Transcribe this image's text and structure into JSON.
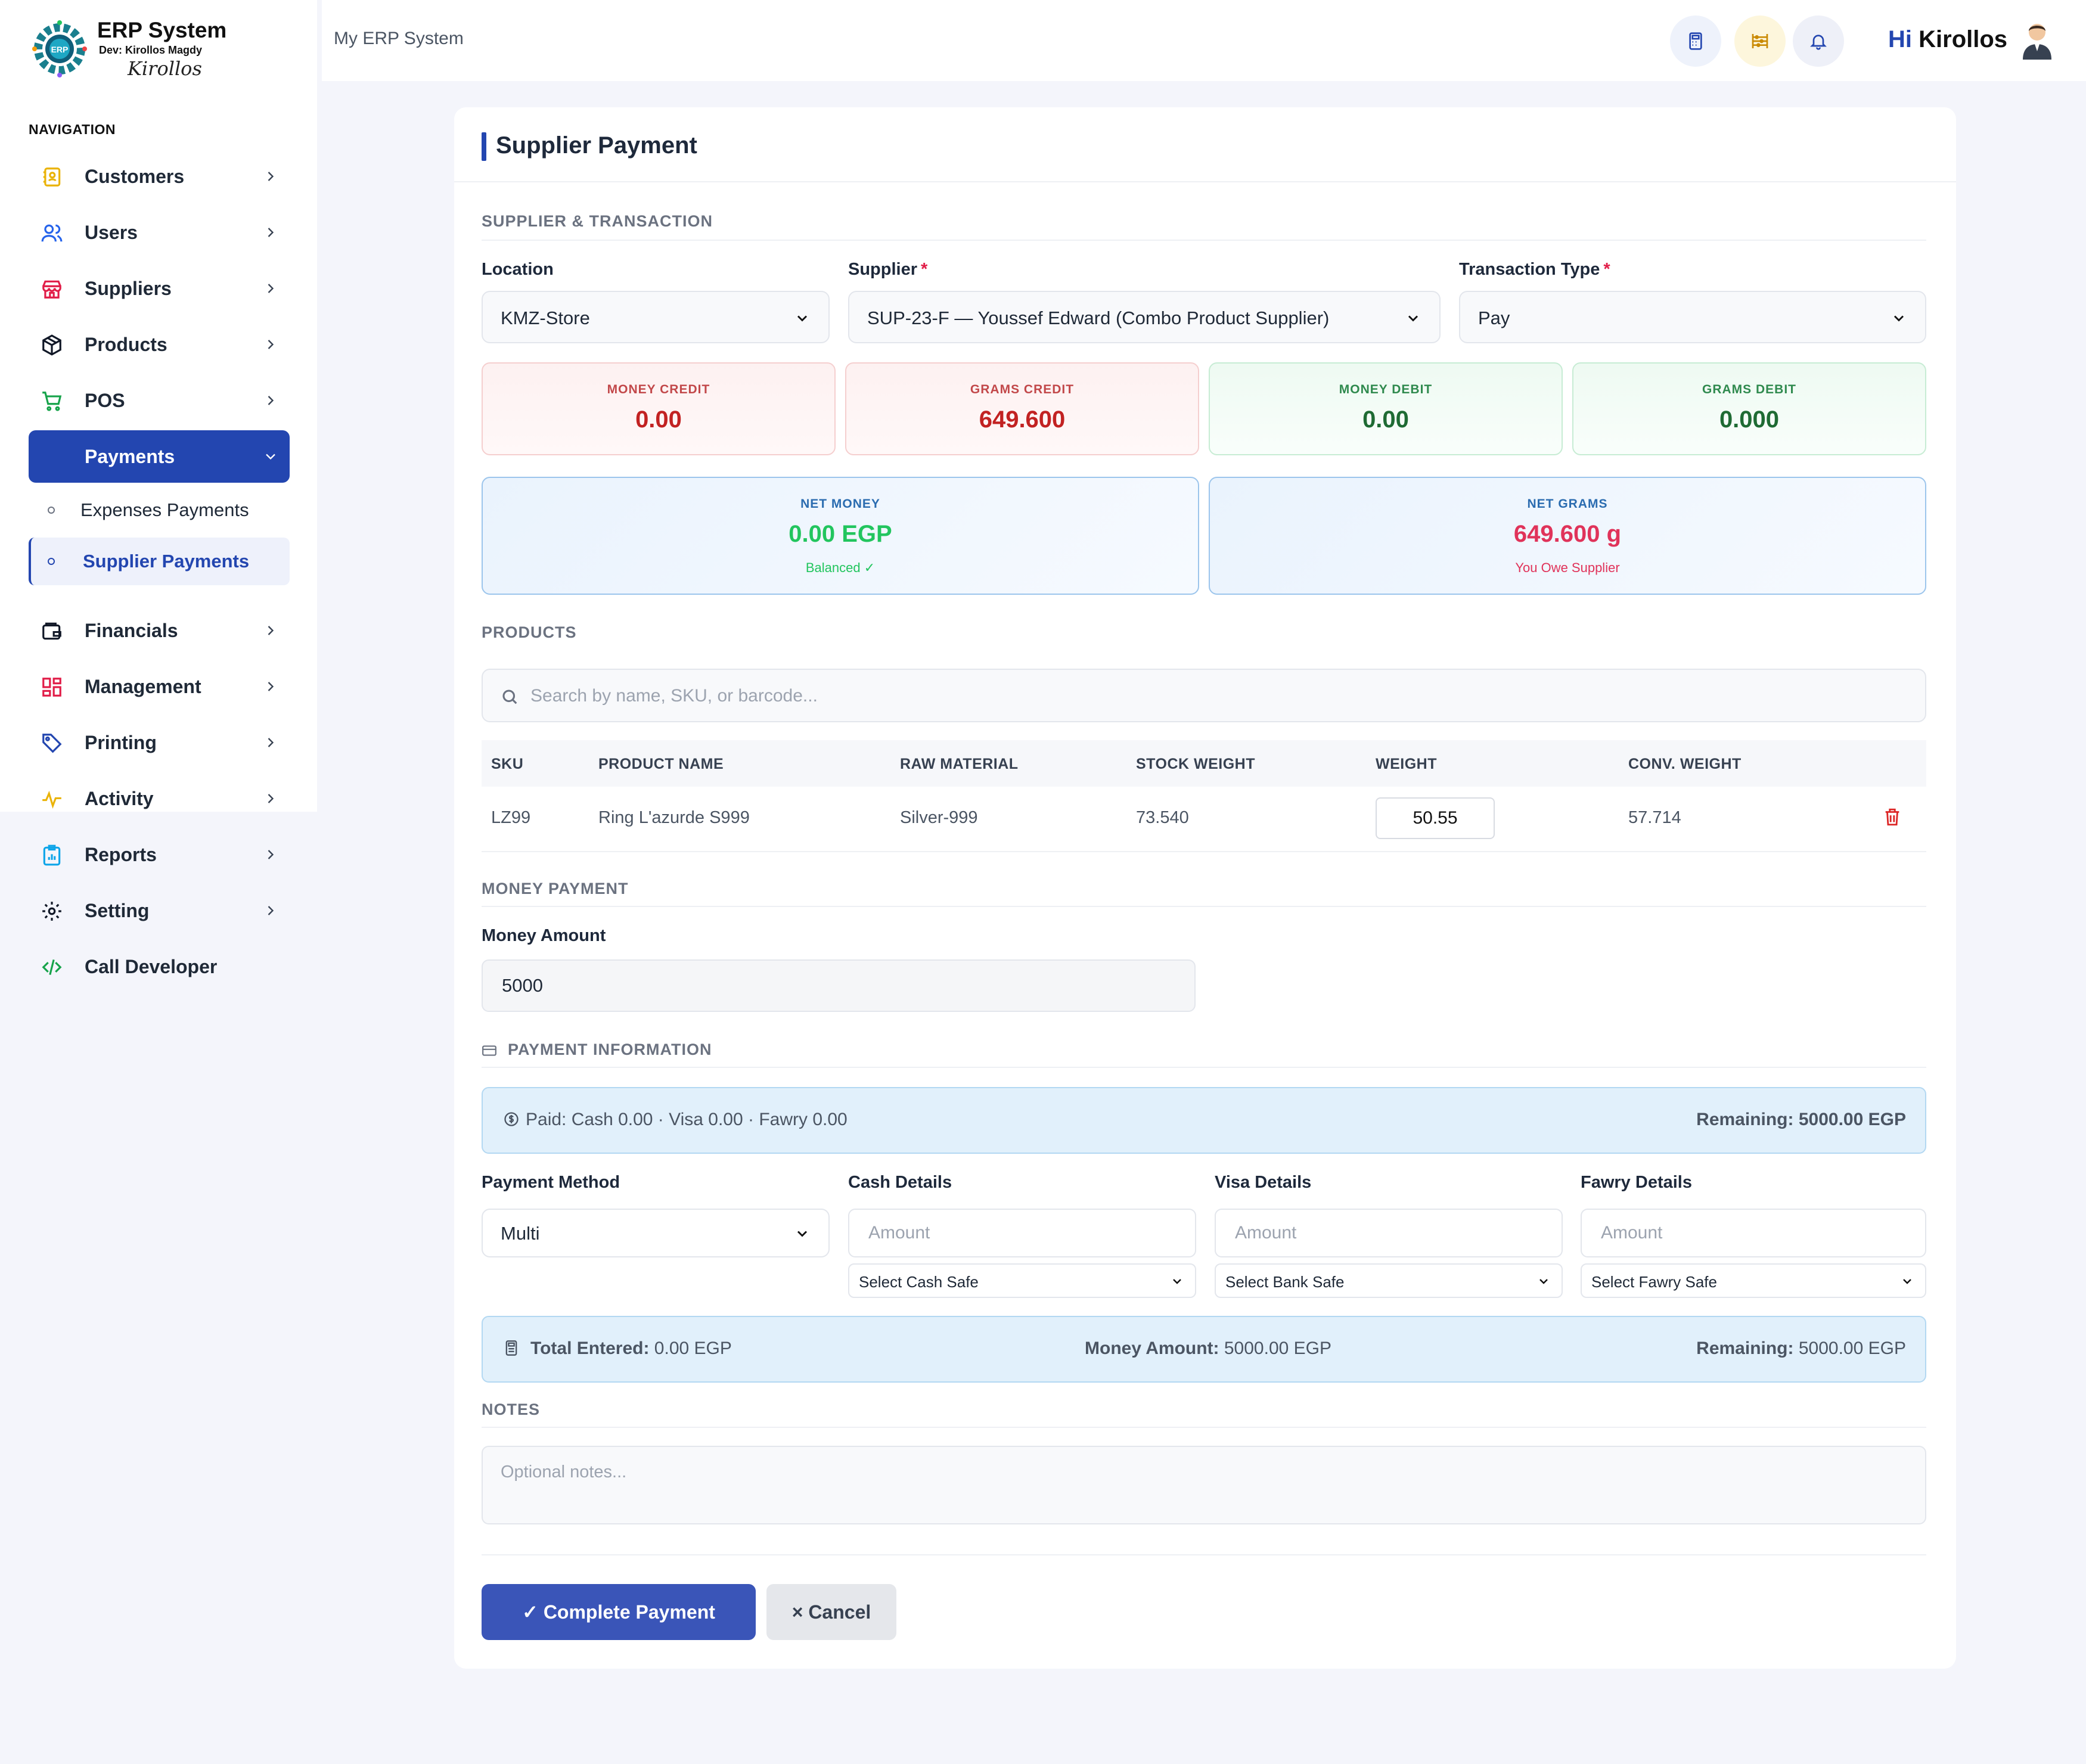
{
  "brand": {
    "title": "ERP System",
    "dev": "Dev: Kirollos Magdy",
    "signature": "Kirollos"
  },
  "sidebar": {
    "heading": "NAVIGATION",
    "items": [
      {
        "label": "Customers",
        "icon": "contacts-book-icon"
      },
      {
        "label": "Users",
        "icon": "users-icon"
      },
      {
        "label": "Suppliers",
        "icon": "store-icon"
      },
      {
        "label": "Products",
        "icon": "box-icon"
      },
      {
        "label": "POS",
        "icon": "cart-icon"
      },
      {
        "label": "Payments",
        "icon": "payments-icon",
        "active": true
      },
      {
        "label": "Financials",
        "icon": "wallet-icon"
      },
      {
        "label": "Management",
        "icon": "grid-icon"
      },
      {
        "label": "Printing",
        "icon": "tag-icon"
      },
      {
        "label": "Activity",
        "icon": "pulse-icon"
      },
      {
        "label": "Reports",
        "icon": "clipboard-chart-icon"
      },
      {
        "label": "Setting",
        "icon": "gear-icon"
      },
      {
        "label": "Call Developer",
        "icon": "code-icon"
      }
    ],
    "payments_sub": [
      {
        "label": "Expenses Payments"
      },
      {
        "label": "Supplier Payments",
        "active": true
      }
    ]
  },
  "topbar": {
    "breadcrumb": "My ERP System",
    "greeting_hi": "Hi",
    "greeting_name": "Kirollos"
  },
  "page": {
    "title": "Supplier Payment",
    "section_supplier": "SUPPLIER & TRANSACTION",
    "location": {
      "label": "Location",
      "value": "KMZ-Store"
    },
    "supplier": {
      "label": "Supplier",
      "required": "*",
      "value": "SUP-23-F — Youssef Edward (Combo Product Supplier)"
    },
    "transaction_type": {
      "label": "Transaction Type",
      "required": "*",
      "value": "Pay"
    },
    "stats": [
      {
        "label": "MONEY CREDIT",
        "value": "0.00"
      },
      {
        "label": "GRAMS CREDIT",
        "value": "649.600"
      },
      {
        "label": "MONEY DEBIT",
        "value": "0.00"
      },
      {
        "label": "GRAMS DEBIT",
        "value": "0.000"
      }
    ],
    "net_money": {
      "label": "NET MONEY",
      "value": "0.00 EGP",
      "status": "Balanced ✓"
    },
    "net_grams": {
      "label": "NET GRAMS",
      "value": "649.600 g",
      "status": "You Owe Supplier"
    },
    "section_products": "PRODUCTS",
    "search_placeholder": "Search by name, SKU, or barcode...",
    "table": {
      "columns": [
        "SKU",
        "PRODUCT NAME",
        "RAW MATERIAL",
        "STOCK WEIGHT",
        "WEIGHT",
        "CONV. WEIGHT"
      ],
      "rows": [
        {
          "sku": "LZ99",
          "name": "Ring L'azurde S999",
          "raw": "Silver-999",
          "stock": "73.540",
          "weight": "50.55",
          "conv": "57.714"
        }
      ]
    },
    "section_money": "MONEY PAYMENT",
    "money_amount": {
      "label": "Money Amount",
      "value": "5000"
    },
    "section_payment_info": "PAYMENT INFORMATION",
    "paid_summary": "Paid: Cash 0.00 · Visa 0.00 · Fawry 0.00",
    "remaining_label": "Remaining:",
    "remaining_value": "5000.00 EGP",
    "payment_method": {
      "label": "Payment Method",
      "value": "Multi"
    },
    "cash": {
      "label": "Cash Details",
      "placeholder": "Amount",
      "safe": "Select Cash Safe"
    },
    "visa": {
      "label": "Visa Details",
      "placeholder": "Amount",
      "safe": "Select Bank Safe"
    },
    "fawry": {
      "label": "Fawry Details",
      "placeholder": "Amount",
      "safe": "Select Fawry Safe"
    },
    "totals": {
      "entered_label": "Total Entered:",
      "entered_value": "0.00 EGP",
      "money_label": "Money Amount:",
      "money_value": "5000.00 EGP",
      "remaining_label": "Remaining:",
      "remaining_value": "5000.00 EGP"
    },
    "section_notes": "NOTES",
    "notes_placeholder": "Optional notes...",
    "complete_label": "✓ Complete Payment",
    "cancel_label": "× Cancel"
  },
  "colors": {
    "accent": "#2346b0",
    "credit": "#c22222",
    "debit": "#1f6b34",
    "net_money": "#22c55e",
    "net_grams": "#e0335a"
  }
}
